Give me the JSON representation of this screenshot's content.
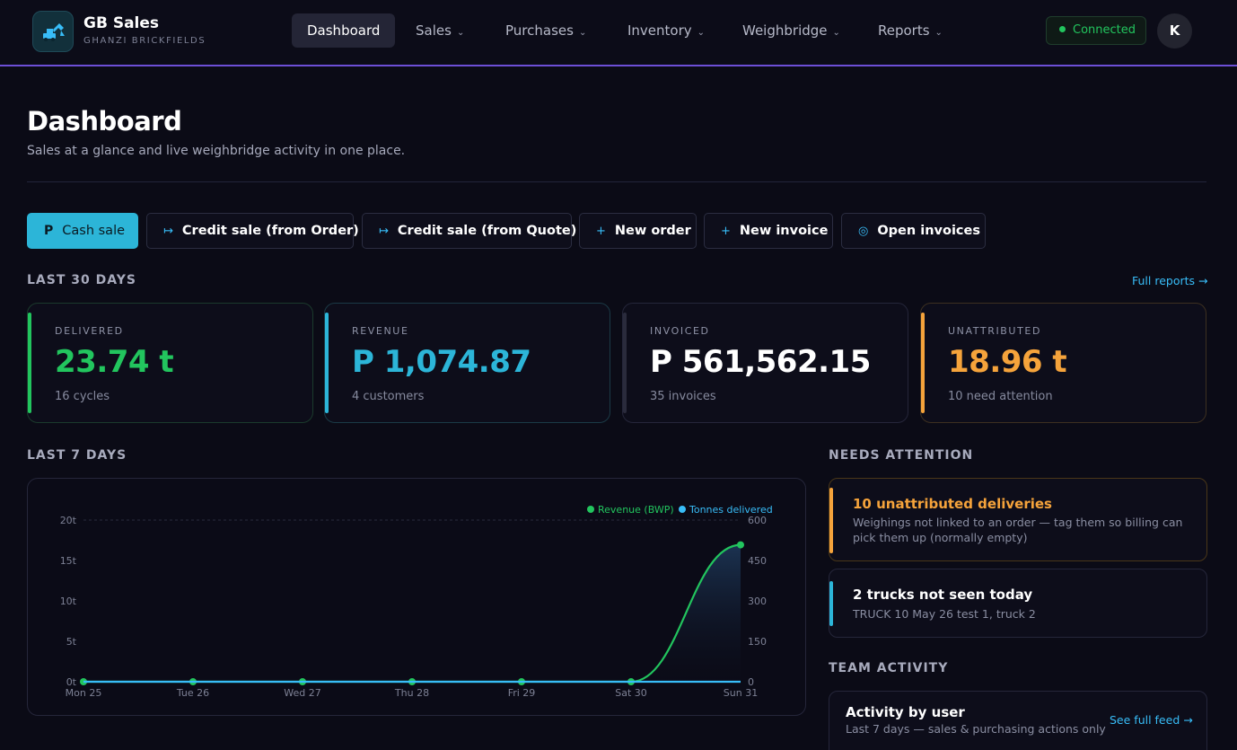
{
  "brand": {
    "name": "GB Sales",
    "subtitle": "GHANZI BRICKFIELDS",
    "logo_icon": "excavator-icon"
  },
  "nav": {
    "items": [
      {
        "label": "Dashboard",
        "active": true
      },
      {
        "label": "Sales"
      },
      {
        "label": "Purchases"
      },
      {
        "label": "Inventory"
      },
      {
        "label": "Weighbridge"
      },
      {
        "label": "Reports"
      }
    ],
    "status": "Connected",
    "avatar": "K"
  },
  "header": {
    "title": "Dashboard",
    "subtitle": "Sales at a glance and live weighbridge activity in one place."
  },
  "actions": [
    {
      "icon": "P",
      "label": "Cash sale"
    },
    {
      "icon": "↦",
      "label": "Credit sale (from Order)"
    },
    {
      "icon": "↦",
      "label": "Credit sale (from Quote)"
    },
    {
      "icon": "+",
      "label": "New order"
    },
    {
      "icon": "+",
      "label": "New invoice"
    },
    {
      "icon": "◎",
      "label": "Open invoices"
    }
  ],
  "last30": {
    "label": "LAST 30 DAYS",
    "link": "Full reports →",
    "cards": [
      {
        "label": "DELIVERED",
        "value": "23.74 t",
        "sub": "16 cycles",
        "color": "#22c55e"
      },
      {
        "label": "REVENUE",
        "value": "P 1,074.87",
        "sub": "4 customers",
        "color": "#2cb5d8"
      },
      {
        "label": "INVOICED",
        "value": "P 561,562.15",
        "sub": "35 invoices",
        "color": "#ffffff"
      },
      {
        "label": "UNATTRIBUTED",
        "value": "18.96 t",
        "sub": "10 need attention",
        "color": "#f5a33b"
      }
    ]
  },
  "last7": {
    "label": "LAST 7 DAYS"
  },
  "chart_data": {
    "type": "line",
    "categories": [
      "Mon 25",
      "Tue 26",
      "Wed 27",
      "Thu 28",
      "Fri 29",
      "Sat 30",
      "Sun 31"
    ],
    "series": [
      {
        "name": "Revenue (BWP)",
        "axis": "right",
        "values": [
          0,
          0,
          0,
          0,
          0,
          0,
          508
        ],
        "color": "#22c55e"
      },
      {
        "name": "Tonnes delivered",
        "axis": "left",
        "values": [
          0,
          0,
          0,
          0,
          0,
          0,
          0
        ],
        "color": "#38bdf8"
      }
    ],
    "y_left": {
      "ticks": [
        "0t",
        "5t",
        "10t",
        "15t",
        "20t"
      ],
      "lim": [
        0,
        20
      ]
    },
    "y_right": {
      "ticks": [
        "0",
        "150",
        "300",
        "450",
        "600"
      ],
      "lim": [
        0,
        600
      ]
    },
    "legend": "top-right",
    "grid": "top line only"
  },
  "attention": {
    "label": "NEEDS ATTENTION",
    "items": [
      {
        "title": "10 unattributed deliveries",
        "desc": "Weighings not linked to an order — tag them so billing can pick them up (normally empty)",
        "color": "#f5a33b"
      },
      {
        "title": "2 trucks not seen today",
        "desc": "TRUCK 10 May 26 test 1, truck 2",
        "color": "#2cb5d8"
      }
    ]
  },
  "team": {
    "label": "TEAM ACTIVITY",
    "title": "Activity by user",
    "desc": "Last 7 days — sales & purchasing actions only",
    "link": "See full feed →"
  }
}
